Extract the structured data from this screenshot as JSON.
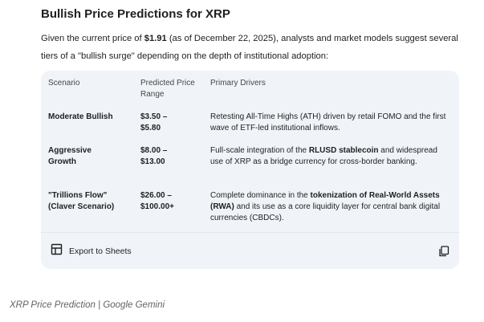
{
  "heading": "Bullish Price Predictions for XRP",
  "intro": {
    "prefix": "Given the current price of ",
    "price": "$1.91",
    "suffix": " (as of December 22, 2025), analysts and market models suggest several tiers of a \"bullish surge\" depending on the depth of institutional adoption:"
  },
  "table": {
    "headers": [
      "Scenario",
      "Predicted Price Range",
      "Primary Drivers"
    ],
    "rows": [
      {
        "scenario": "Moderate Bullish",
        "range": "$3.50 – $5.80",
        "drivers": [
          {
            "text": "Retesting All-Time Highs (ATH) driven by retail FOMO and the first wave of ETF-led institutional inflows.",
            "bold": false
          }
        ]
      },
      {
        "scenario": "Aggressive Growth",
        "range": "$8.00 – $13.00",
        "drivers": [
          {
            "text": "Full-scale integration of the ",
            "bold": false
          },
          {
            "text": "RLUSD stablecoin",
            "bold": true
          },
          {
            "text": " and widespread use of XRP as a bridge currency for cross-border banking.",
            "bold": false
          }
        ]
      },
      {
        "scenario": "\"Trillions Flow\" (Claver Scenario)",
        "range": "$26.00 – $100.00+",
        "drivers": [
          {
            "text": "Complete dominance in the ",
            "bold": false
          },
          {
            "text": "tokenization of Real-World Assets (RWA)",
            "bold": true
          },
          {
            "text": " and its use as a core liquidity layer for central bank digital currencies (CBDCs).",
            "bold": false
          }
        ]
      }
    ]
  },
  "footer": {
    "export_label": "Export to Sheets",
    "export_icon": "table-icon",
    "copy_icon": "copy-icon"
  },
  "caption": "XRP Price Prediction | Google Gemini",
  "colors": {
    "table_bg": "#f0f4f9",
    "text": "#1f1f1f",
    "muted": "#444746",
    "caption": "#5f6368"
  }
}
